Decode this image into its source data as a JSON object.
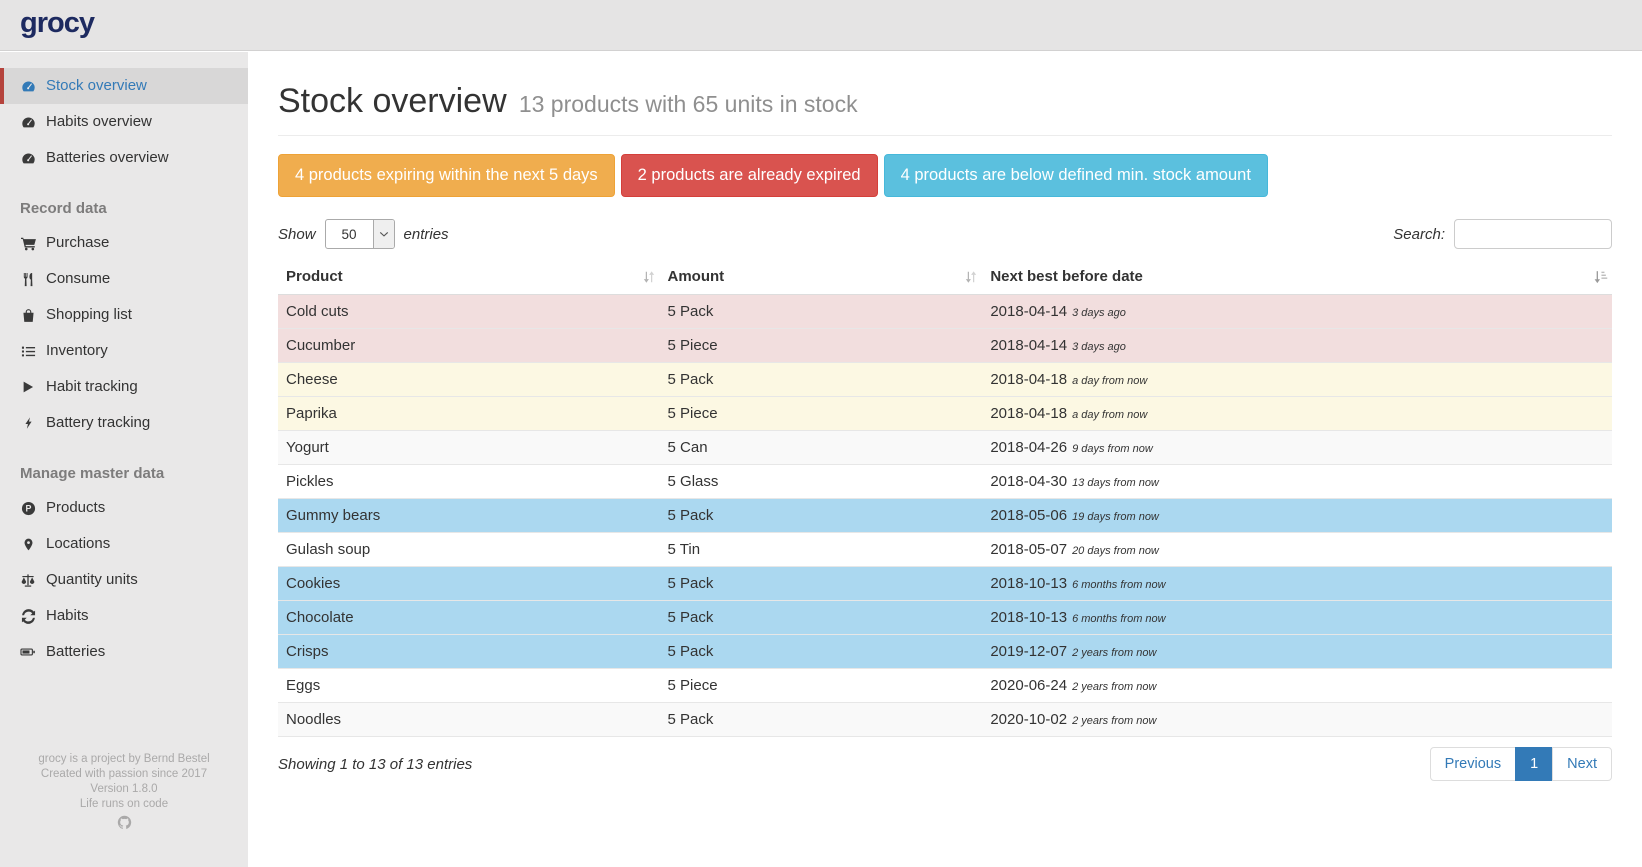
{
  "app": {
    "logo_text": "grocy"
  },
  "sidebar": {
    "items": [
      {
        "label": "Stock overview",
        "icon": "tachometer-icon",
        "active": true
      },
      {
        "label": "Habits overview",
        "icon": "tachometer-icon"
      },
      {
        "label": "Batteries overview",
        "icon": "tachometer-icon"
      },
      {
        "type": "header",
        "label": "Record data"
      },
      {
        "label": "Purchase",
        "icon": "shopping-cart-icon"
      },
      {
        "label": "Consume",
        "icon": "utensils-icon"
      },
      {
        "label": "Shopping list",
        "icon": "shopping-bag-icon"
      },
      {
        "label": "Inventory",
        "icon": "list-icon"
      },
      {
        "label": "Habit tracking",
        "icon": "play-icon"
      },
      {
        "label": "Battery tracking",
        "icon": "bolt-icon"
      },
      {
        "type": "header",
        "label": "Manage master data"
      },
      {
        "label": "Products",
        "icon": "product-circle-icon"
      },
      {
        "label": "Locations",
        "icon": "map-marker-icon"
      },
      {
        "label": "Quantity units",
        "icon": "balance-scale-icon"
      },
      {
        "label": "Habits",
        "icon": "refresh-icon"
      },
      {
        "label": "Batteries",
        "icon": "battery-icon"
      }
    ],
    "footer_lines": [
      "grocy is a project by Bernd Bestel",
      "Created with passion since 2017",
      "Version 1.8.0",
      "Life runs on code"
    ],
    "footer_icon": "github-icon"
  },
  "page": {
    "title": "Stock overview",
    "subtitle": "13 products with 65 units in stock"
  },
  "alerts": [
    {
      "name": "expiring-alert-button",
      "label": "4 products expiring within the next 5 days",
      "color": "#f0ad4e",
      "border": "#eea236"
    },
    {
      "name": "expired-alert-button",
      "label": "2 products are already expired",
      "color": "#d9534f",
      "border": "#d43f3a"
    },
    {
      "name": "below-min-alert-button",
      "label": "4 products are below defined min. stock amount",
      "color": "#5bc0de",
      "border": "#46b8da"
    }
  ],
  "controls": {
    "show_label": "Show",
    "page_size": "50",
    "entries_label": "entries",
    "search_label": "Search:",
    "search_value": "",
    "search_placeholder": ""
  },
  "table": {
    "columns": [
      "Product",
      "Amount",
      "Next best before date"
    ],
    "status_colors": {
      "expired": "#f2dede",
      "expiring": "#fcf8e3",
      "below_min": "#abd8f0"
    },
    "rows": [
      {
        "product": "Cold cuts",
        "amount": "5 Pack",
        "date": "2018-04-14",
        "relative": "3 days ago",
        "status": "expired"
      },
      {
        "product": "Cucumber",
        "amount": "5 Piece",
        "date": "2018-04-14",
        "relative": "3 days ago",
        "status": "expired"
      },
      {
        "product": "Cheese",
        "amount": "5 Pack",
        "date": "2018-04-18",
        "relative": "a day from now",
        "status": "expiring"
      },
      {
        "product": "Paprika",
        "amount": "5 Piece",
        "date": "2018-04-18",
        "relative": "a day from now",
        "status": "expiring"
      },
      {
        "product": "Yogurt",
        "amount": "5 Can",
        "date": "2018-04-26",
        "relative": "9 days from now",
        "status": "none"
      },
      {
        "product": "Pickles",
        "amount": "5 Glass",
        "date": "2018-04-30",
        "relative": "13 days from now",
        "status": "none"
      },
      {
        "product": "Gummy bears",
        "amount": "5 Pack",
        "date": "2018-05-06",
        "relative": "19 days from now",
        "status": "below_min"
      },
      {
        "product": "Gulash soup",
        "amount": "5 Tin",
        "date": "2018-05-07",
        "relative": "20 days from now",
        "status": "none"
      },
      {
        "product": "Cookies",
        "amount": "5 Pack",
        "date": "2018-10-13",
        "relative": "6 months from now",
        "status": "below_min"
      },
      {
        "product": "Chocolate",
        "amount": "5 Pack",
        "date": "2018-10-13",
        "relative": "6 months from now",
        "status": "below_min"
      },
      {
        "product": "Crisps",
        "amount": "5 Pack",
        "date": "2019-12-07",
        "relative": "2 years from now",
        "status": "below_min"
      },
      {
        "product": "Eggs",
        "amount": "5 Piece",
        "date": "2020-06-24",
        "relative": "2 years from now",
        "status": "none"
      },
      {
        "product": "Noodles",
        "amount": "5 Pack",
        "date": "2020-10-02",
        "relative": "2 years from now",
        "status": "none"
      }
    ],
    "summary": "Showing 1 to 13 of 13 entries"
  },
  "pagination": [
    {
      "label": "Previous",
      "active": false
    },
    {
      "label": "1",
      "active": true
    },
    {
      "label": "Next",
      "active": false
    }
  ],
  "colors": {
    "accent_blue": "#337ab7",
    "active_red_bar": "#b5433c",
    "sidebar_bg": "#e9e8e8",
    "topbar_bg": "#e5e4e4"
  }
}
